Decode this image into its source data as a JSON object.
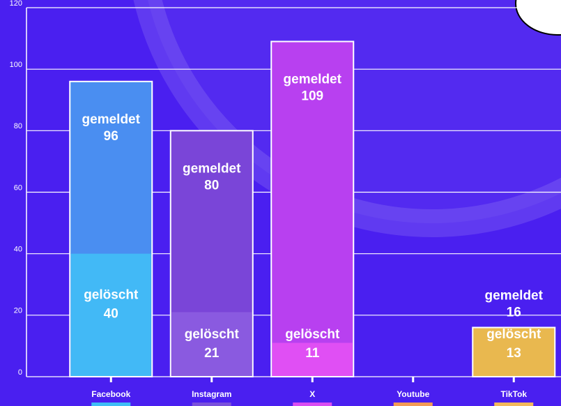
{
  "chart_data": {
    "type": "bar",
    "categories": [
      "Facebook",
      "Instagram",
      "X",
      "Youtube",
      "TikTok"
    ],
    "category_colors": [
      "#3fbdf6",
      "#7a50dc",
      "#d94cf2",
      "#f29a55",
      "#f2b85c"
    ],
    "series": [
      {
        "name": "gemeldet",
        "values": [
          96,
          80,
          109,
          null,
          16
        ],
        "colors": [
          "#4a8ef1",
          "#7a45d8",
          "#b840f0",
          null,
          "#e9b84f"
        ]
      },
      {
        "name": "gelöscht",
        "values": [
          40,
          21,
          11,
          null,
          13
        ],
        "colors": [
          "#42b9f6",
          "#8a5ae0",
          "#e04ff4",
          null,
          "#e9b84f"
        ]
      }
    ],
    "ylim": [
      0,
      120
    ],
    "yticks": [
      0,
      20,
      40,
      60,
      80,
      100,
      120
    ],
    "grid": true
  }
}
